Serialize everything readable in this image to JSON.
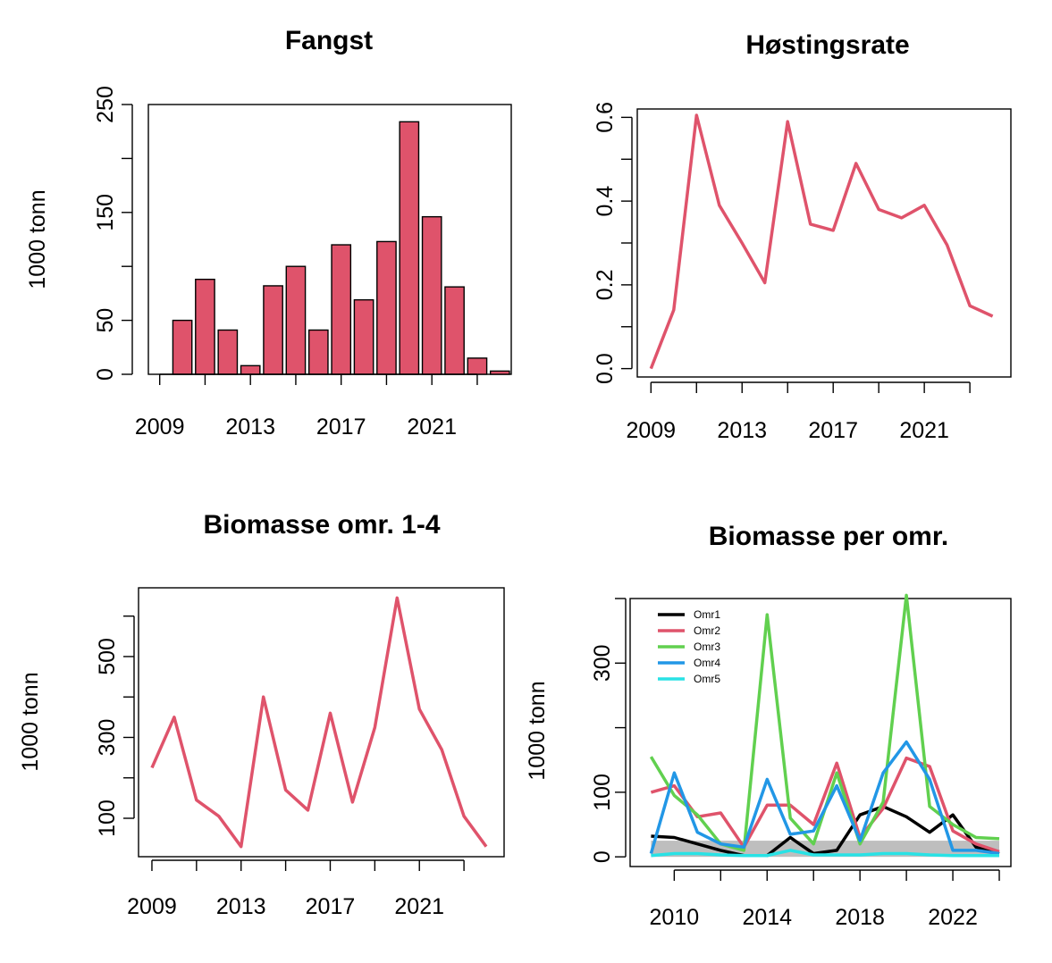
{
  "chart_data": [
    {
      "id": "fangst",
      "type": "bar",
      "title": "Fangst",
      "ylabel": "1000 tonn",
      "xlabel": "",
      "years": [
        2009,
        2010,
        2011,
        2012,
        2013,
        2014,
        2015,
        2016,
        2017,
        2018,
        2019,
        2020,
        2021,
        2022,
        2023,
        2024
      ],
      "values": [
        0,
        50,
        88,
        41,
        8,
        82,
        100,
        41,
        120,
        69,
        123,
        234,
        146,
        81,
        15,
        3
      ],
      "xlim": [
        2008.5,
        2024.5
      ],
      "ylim": [
        0,
        250
      ],
      "xticks": [
        "2009",
        "2013",
        "2017",
        "2021"
      ],
      "yticks": [
        "0",
        "50",
        "150",
        "250"
      ],
      "bar_color": "#DF536B"
    },
    {
      "id": "hostingsrate",
      "type": "line",
      "title": "Høstingsrate",
      "ylabel": "",
      "years": [
        2009,
        2010,
        2011,
        2012,
        2013,
        2014,
        2015,
        2016,
        2017,
        2018,
        2019,
        2020,
        2021,
        2022,
        2023,
        2024
      ],
      "values": [
        0.0,
        0.14,
        0.605,
        0.39,
        0.3,
        0.205,
        0.59,
        0.345,
        0.33,
        0.49,
        0.38,
        0.36,
        0.39,
        0.295,
        0.15,
        0.125
      ],
      "xlim": [
        2008.4,
        2024.8
      ],
      "ylim": [
        -0.02,
        0.62
      ],
      "xticks": [
        "2009",
        "2013",
        "2017",
        "2021"
      ],
      "yticks": [
        "0.0",
        "0.2",
        "0.4",
        "0.6"
      ],
      "line_color": "#DF536B"
    },
    {
      "id": "biomasse14",
      "type": "line",
      "title": "Biomasse omr. 1-4",
      "ylabel": "1000 tonn",
      "years": [
        2009,
        2010,
        2011,
        2012,
        2013,
        2014,
        2015,
        2016,
        2017,
        2018,
        2019,
        2020,
        2021,
        2022,
        2023,
        2024
      ],
      "values": [
        225,
        350,
        145,
        105,
        30,
        400,
        170,
        120,
        360,
        140,
        325,
        645,
        370,
        270,
        105,
        30
      ],
      "xlim": [
        2008.4,
        2024.8
      ],
      "ylim": [
        5,
        670
      ],
      "xticks": [
        "2009",
        "2013",
        "2017",
        "2021"
      ],
      "yticks": [
        "100",
        "300",
        "500"
      ],
      "line_color": "#DF536B"
    },
    {
      "id": "biomasse_per_omr",
      "type": "line",
      "title": "Biomasse per omr.",
      "ylabel": "1000 tonn",
      "years": [
        2009,
        2010,
        2011,
        2012,
        2013,
        2014,
        2015,
        2016,
        2017,
        2018,
        2019,
        2020,
        2021,
        2022,
        2023,
        2024
      ],
      "xlim": [
        2008.1,
        2024.5
      ],
      "ylim": [
        -15,
        400
      ],
      "xticks": [
        "2010",
        "2014",
        "2018",
        "2022"
      ],
      "yticks": [
        "0",
        "100",
        "300"
      ],
      "shaded_band": [
        0,
        25
      ],
      "band_color": "#BEBEBE",
      "series": [
        {
          "name": "Omr1",
          "color": "#000000",
          "values": [
            32,
            30,
            20,
            10,
            2,
            2,
            30,
            5,
            10,
            65,
            78,
            62,
            38,
            65,
            15,
            5
          ]
        },
        {
          "name": "Omr2",
          "color": "#DF536B",
          "values": [
            100,
            110,
            62,
            68,
            15,
            80,
            80,
            50,
            145,
            30,
            75,
            153,
            140,
            40,
            20,
            8
          ]
        },
        {
          "name": "Omr3",
          "color": "#61D04F",
          "values": [
            155,
            95,
            65,
            20,
            10,
            375,
            60,
            20,
            130,
            20,
            85,
            405,
            78,
            50,
            30,
            28
          ]
        },
        {
          "name": "Omr4",
          "color": "#2297E6",
          "values": [
            5,
            130,
            38,
            20,
            15,
            120,
            35,
            40,
            110,
            25,
            130,
            178,
            120,
            10,
            10,
            5
          ]
        },
        {
          "name": "Omr5",
          "color": "#28E2E5",
          "values": [
            2,
            5,
            5,
            3,
            2,
            2,
            10,
            3,
            3,
            3,
            5,
            5,
            3,
            2,
            2,
            2
          ]
        }
      ]
    }
  ]
}
